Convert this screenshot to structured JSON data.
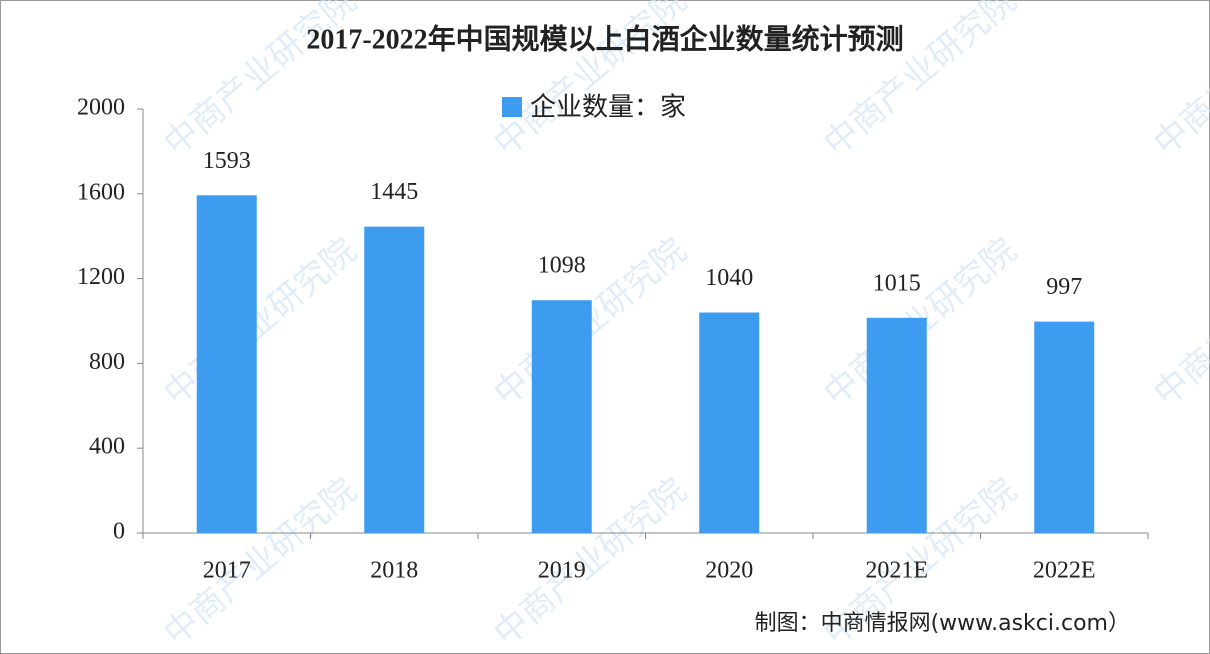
{
  "chart_data": {
    "type": "bar",
    "title": "2017-2022年中国规模以上白酒企业数量统计预测",
    "categories": [
      "2017",
      "2018",
      "2019",
      "2020",
      "2021E",
      "2022E"
    ],
    "series": [
      {
        "name": "企业数量：家",
        "color": "#3d9cf0",
        "values": [
          1593,
          1445,
          1098,
          1040,
          1015,
          997
        ]
      }
    ],
    "ylim": [
      0,
      2000
    ],
    "yticks": [
      0,
      400,
      800,
      1200,
      1600,
      2000
    ],
    "grid": false,
    "legend": "top",
    "source": "制图：中商情报网(www.askci.com）",
    "watermark": "中商产业研究院"
  }
}
